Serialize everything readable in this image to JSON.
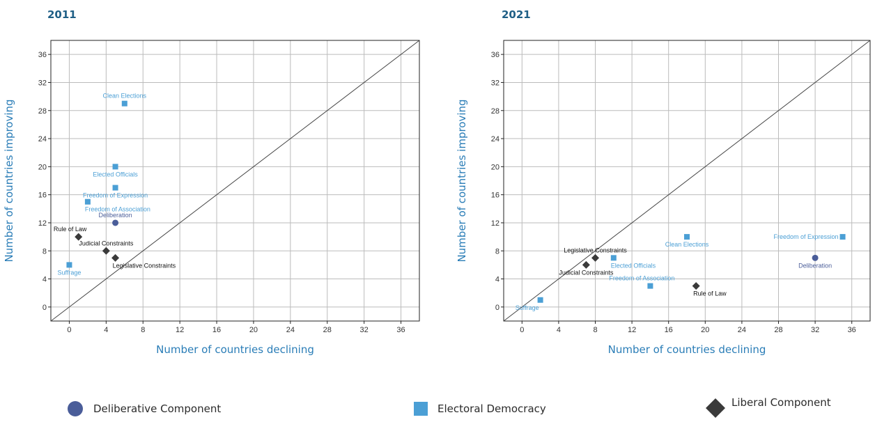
{
  "colors": {
    "deliberative": "#4a5d99",
    "electoral": "#4b9fd5",
    "liberal": "#3a3a3a",
    "axis_title": "#2a7db7",
    "grid": "#bbbbbb",
    "title": "#1f5f86"
  },
  "legend": {
    "items": [
      {
        "label": "Deliberative Component",
        "marker": "circle",
        "color": "#4a5d99"
      },
      {
        "label": "Electoral Democracy",
        "marker": "square",
        "color": "#4b9fd5"
      },
      {
        "label": "Liberal Component",
        "marker": "diamond",
        "color": "#3a3a3a"
      }
    ]
  },
  "chart_data": [
    {
      "type": "scatter",
      "title": "2011",
      "xlabel": "Number of countries declining",
      "ylabel": "Number of countries improving",
      "xlim": [
        -2,
        38
      ],
      "ylim": [
        -2,
        38
      ],
      "xticks": [
        0,
        4,
        8,
        12,
        16,
        20,
        24,
        28,
        32,
        36
      ],
      "yticks": [
        0,
        4,
        8,
        12,
        16,
        20,
        24,
        28,
        32,
        36
      ],
      "grid": true,
      "reference_line": "y = x",
      "series": [
        {
          "name": "Deliberative Component",
          "marker": "circle",
          "points": [
            {
              "x": 5,
              "y": 12,
              "label": "Deliberation",
              "labelPos": "above"
            }
          ]
        },
        {
          "name": "Electoral Democracy",
          "marker": "square",
          "points": [
            {
              "x": 6,
              "y": 29,
              "label": "Clean Elections",
              "labelPos": "above"
            },
            {
              "x": 5,
              "y": 20,
              "label": "Elected Officials",
              "labelPos": "below"
            },
            {
              "x": 5,
              "y": 17,
              "label": "Freedom of Expression",
              "labelPos": "below"
            },
            {
              "x": 2,
              "y": 15,
              "label": "Freedom of Association",
              "labelPos": "below-right"
            },
            {
              "x": 0,
              "y": 6,
              "label": "Suffrage",
              "labelPos": "below"
            }
          ]
        },
        {
          "name": "Liberal Component",
          "marker": "diamond",
          "points": [
            {
              "x": 1,
              "y": 10,
              "label": "Rule of Law",
              "labelPos": "above-left"
            },
            {
              "x": 4,
              "y": 8,
              "label": "Judicial Constraints",
              "labelPos": "above"
            },
            {
              "x": 5,
              "y": 7,
              "label": "Legislative Constraints",
              "labelPos": "below-right"
            }
          ]
        }
      ]
    },
    {
      "type": "scatter",
      "title": "2021",
      "xlabel": "Number of countries declining",
      "ylabel": "Number of countries improving",
      "xlim": [
        -2,
        38
      ],
      "ylim": [
        -2,
        38
      ],
      "xticks": [
        0,
        4,
        8,
        12,
        16,
        20,
        24,
        28,
        32,
        36
      ],
      "yticks": [
        0,
        4,
        8,
        12,
        16,
        20,
        24,
        28,
        32,
        36
      ],
      "grid": true,
      "reference_line": "y = x",
      "series": [
        {
          "name": "Deliberative Component",
          "marker": "circle",
          "points": [
            {
              "x": 32,
              "y": 7,
              "label": "Deliberation",
              "labelPos": "below"
            }
          ]
        },
        {
          "name": "Electoral Democracy",
          "marker": "square",
          "points": [
            {
              "x": 35,
              "y": 10,
              "label": "Freedom of Expression",
              "labelPos": "left"
            },
            {
              "x": 18,
              "y": 10,
              "label": "Clean Elections",
              "labelPos": "below"
            },
            {
              "x": 10,
              "y": 7,
              "label": "Elected Officials",
              "labelPos": "below-right"
            },
            {
              "x": 14,
              "y": 3,
              "label": "Freedom of Association",
              "labelPos": "above-left"
            },
            {
              "x": 2,
              "y": 1,
              "label": "Suffrage",
              "labelPos": "below-left"
            }
          ]
        },
        {
          "name": "Liberal Component",
          "marker": "diamond",
          "points": [
            {
              "x": 8,
              "y": 7,
              "label": "Legislative Constraints",
              "labelPos": "above"
            },
            {
              "x": 7,
              "y": 6,
              "label": "Judicial Constraints",
              "labelPos": "below"
            },
            {
              "x": 19,
              "y": 3,
              "label": "Rule of Law",
              "labelPos": "below-right"
            }
          ]
        }
      ]
    }
  ]
}
